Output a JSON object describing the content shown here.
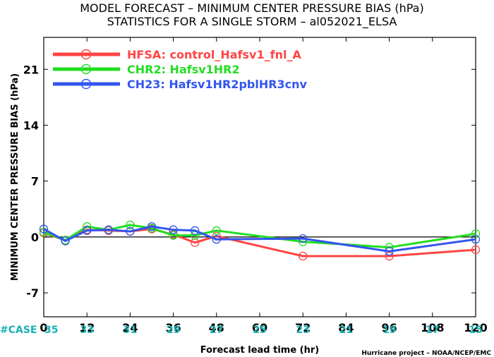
{
  "chart_data": {
    "type": "line",
    "title": "MODEL FORECAST – MINIMUM CENTER PRESSURE BIAS (hPa)",
    "subtitle": "STATISTICS FOR A SINGLE STORM – al052021_ELSA",
    "xlabel": "Forecast lead time (hr)",
    "ylabel": "MINIMUM CENTER PRESSURE BIAS (hPa)",
    "xlim": [
      0,
      120
    ],
    "ylim": [
      -10,
      25
    ],
    "xticks": [
      0,
      12,
      24,
      36,
      48,
      60,
      72,
      84,
      96,
      108,
      120
    ],
    "yticks": [
      -7,
      0,
      7,
      14,
      21
    ],
    "zero_line": true,
    "legend_position": "top-left",
    "series": [
      {
        "name": "HFSA: control_Hafsv1_fnl_A",
        "color": "#ff4444",
        "x": [
          0,
          6,
          12,
          18,
          24,
          30,
          36,
          42,
          48,
          72,
          96,
          120
        ],
        "y": [
          0.5,
          -0.4,
          0.9,
          0.8,
          0.7,
          1.0,
          0.3,
          -0.7,
          0.1,
          -2.4,
          -2.4,
          -1.6
        ]
      },
      {
        "name": "CHR2: Hafsv1HR2",
        "color": "#22dd22",
        "x": [
          0,
          6,
          12,
          18,
          24,
          30,
          36,
          42,
          48,
          72,
          96,
          120
        ],
        "y": [
          0.6,
          -0.4,
          1.3,
          0.9,
          1.5,
          1.1,
          0.2,
          0.2,
          0.8,
          -0.6,
          -1.3,
          0.4
        ]
      },
      {
        "name": "CH23: Hafsv1HR2pblHR3cnv",
        "color": "#3355ee",
        "x": [
          0,
          6,
          12,
          18,
          24,
          30,
          36,
          42,
          48,
          72,
          96,
          120
        ],
        "y": [
          1.0,
          -0.5,
          0.8,
          0.9,
          0.7,
          1.3,
          0.9,
          0.8,
          -0.3,
          -0.2,
          -1.8,
          -0.3
        ]
      }
    ],
    "case_label": "#CASE",
    "case_counts": [
      {
        "x": 0,
        "n": "35"
      },
      {
        "x": 12,
        "n": "33"
      },
      {
        "x": 24,
        "n": "31"
      },
      {
        "x": 36,
        "n": "29"
      },
      {
        "x": 48,
        "n": "27"
      },
      {
        "x": 60,
        "n": "25"
      },
      {
        "x": 72,
        "n": "23"
      },
      {
        "x": 84,
        "n": "21"
      },
      {
        "x": 96,
        "n": "19"
      },
      {
        "x": 108,
        "n": "17"
      },
      {
        "x": 120,
        "n": "15"
      }
    ],
    "credit": "Hurricane project – NOAA/NCEP/EMC"
  }
}
